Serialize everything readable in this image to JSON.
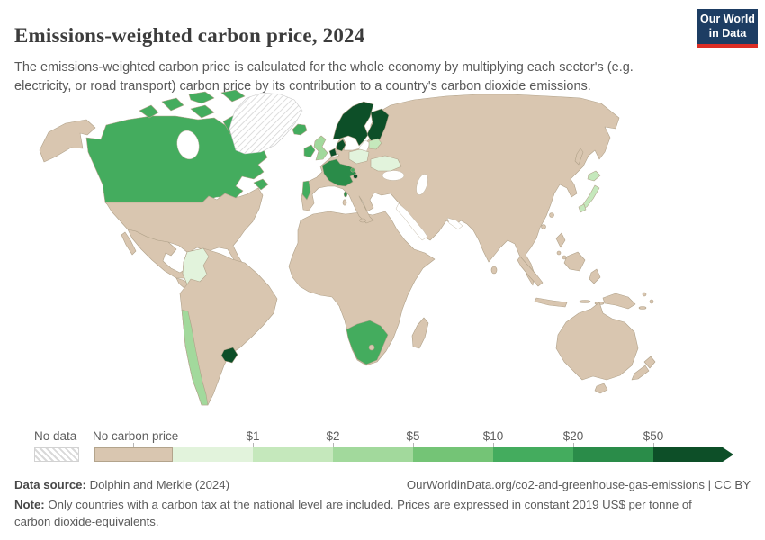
{
  "header": {
    "title": "Emissions-weighted carbon price, 2024",
    "subtitle": "The emissions-weighted carbon price is calculated for the whole economy by multiplying each sector's (e.g. electricity, or road transport) carbon price by its contribution to a country's carbon dioxide emissions.",
    "logo_line1": "Our World",
    "logo_line2": "in Data",
    "logo_bg": "#1d3d63",
    "logo_accent": "#dc2d25"
  },
  "legend": {
    "no_data_label": "No data",
    "no_price_label": "No carbon price",
    "bins": [
      {
        "category": "lt1",
        "tick": ""
      },
      {
        "category": "1-2",
        "tick": "$1"
      },
      {
        "category": "2-5",
        "tick": "$2"
      },
      {
        "category": "5-10",
        "tick": "$5"
      },
      {
        "category": "10-20",
        "tick": "$10"
      },
      {
        "category": "20-50",
        "tick": "$20"
      },
      {
        "category": "50plus",
        "tick": "$50"
      }
    ]
  },
  "chart_data": {
    "type": "choropleth",
    "title": "Emissions-weighted carbon price, 2024",
    "unit": "US$ per tonne of carbon dioxide-equivalents",
    "legend_position": "bottom",
    "categories": [
      {
        "id": "no_data",
        "label": "No data",
        "color": "#ffffff",
        "hatched": true
      },
      {
        "id": "no_price",
        "label": "No carbon price",
        "color": "#d9c6b0"
      },
      {
        "id": "lt1",
        "label": "Less than $1",
        "color": "#e2f3dc"
      },
      {
        "id": "1-2",
        "label": "$1 to $2",
        "color": "#c5e8bc"
      },
      {
        "id": "2-5",
        "label": "$2 to $5",
        "color": "#a2d99c"
      },
      {
        "id": "5-10",
        "label": "$5 to $10",
        "color": "#74c476"
      },
      {
        "id": "10-20",
        "label": "$10 to $20",
        "color": "#44ac5e"
      },
      {
        "id": "20-50",
        "label": "$20 to $50",
        "color": "#2a8c49"
      },
      {
        "id": "50plus",
        "label": "$50 and over",
        "color": "#0d4f28"
      }
    ],
    "countries": {
      "Canada": "10-20",
      "Greenland": "no_data",
      "Colombia": "lt1",
      "Chile": "2-5",
      "Uruguay": "50plus",
      "Iceland": "10-20",
      "Ireland": "10-20",
      "United Kingdom": "2-5",
      "France": "20-50",
      "Portugal": "10-20",
      "Norway": "50plus",
      "Sweden": "50plus",
      "Finland": "50plus",
      "Denmark": "50plus",
      "Netherlands": "50plus",
      "Switzerland": "50plus",
      "Slovenia": "10-20",
      "Estonia": "1-2",
      "Latvia": "1-2",
      "Poland": "lt1",
      "Ukraine": "lt1",
      "Japan": "1-2",
      "South Africa": "10-20"
    }
  },
  "footer": {
    "source_label": "Data source:",
    "source": "Dolphin and Merkle (2024)",
    "link": "OurWorldinData.org/co2-and-greenhouse-gas-emissions | CC BY",
    "note_label": "Note:",
    "note": "Only countries with a carbon tax at the national level are included. Prices are expressed in constant 2019 US$ per tonne of carbon dioxide-equivalents."
  }
}
